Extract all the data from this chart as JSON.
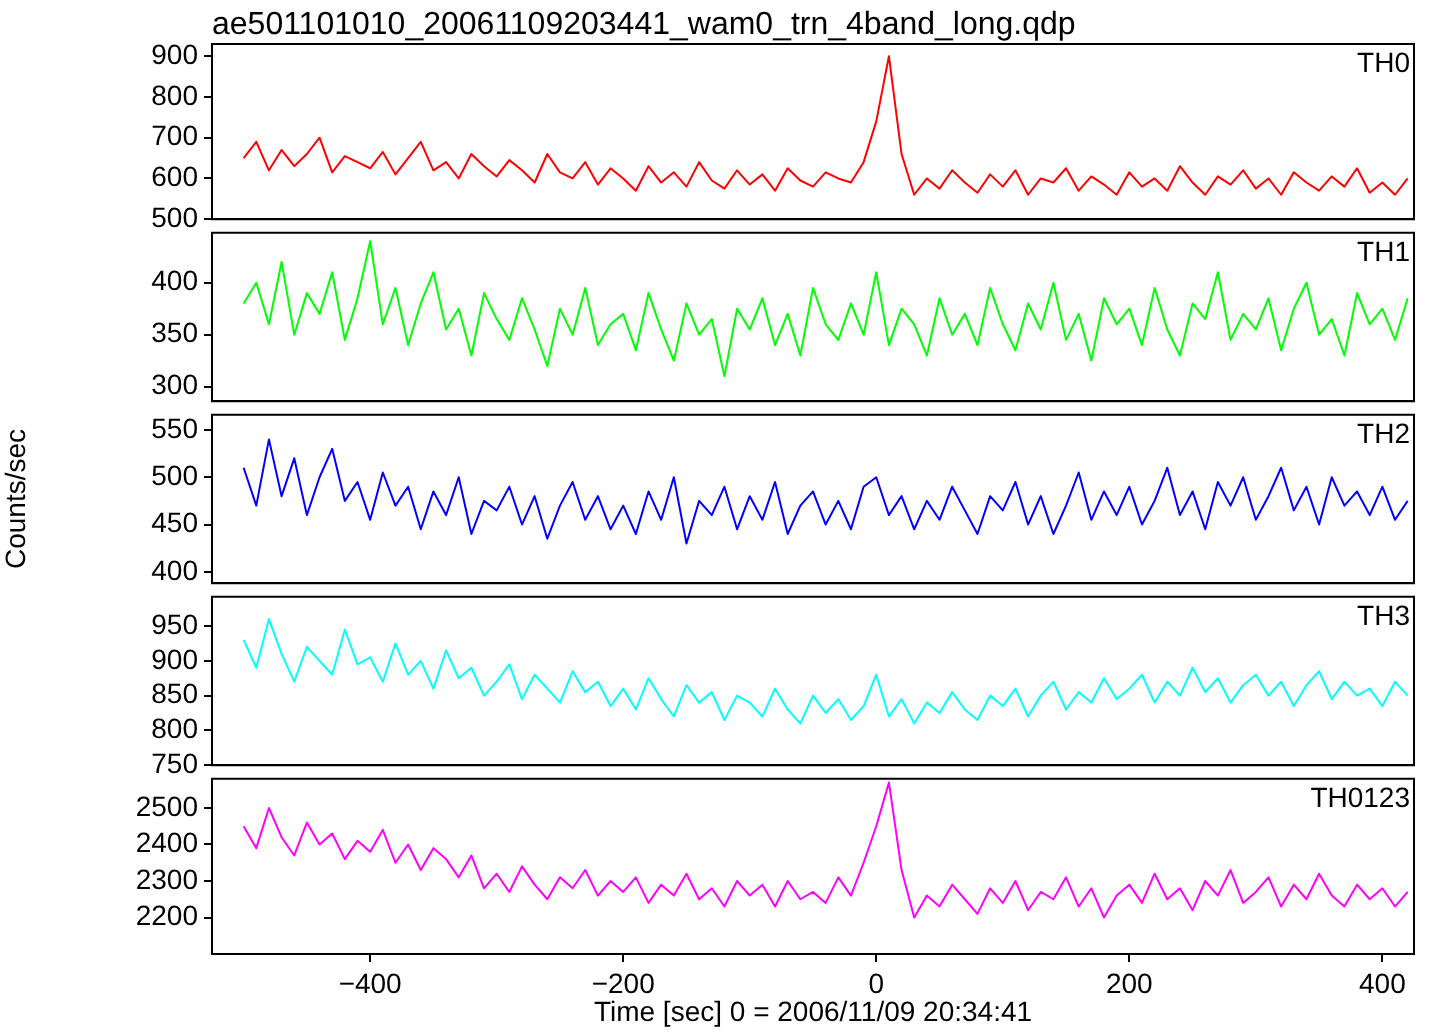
{
  "chart_data": [
    {
      "type": "line",
      "title": "ae501101010_20061109203441_wam0_trn_4band_long.qdp",
      "x": [
        -500,
        -490,
        -480,
        -470,
        -460,
        -450,
        -440,
        -430,
        -420,
        -410,
        -400,
        -390,
        -380,
        -370,
        -360,
        -350,
        -340,
        -330,
        -320,
        -310,
        -300,
        -290,
        -280,
        -270,
        -260,
        -250,
        -240,
        -230,
        -220,
        -210,
        -200,
        -190,
        -180,
        -170,
        -160,
        -150,
        -140,
        -130,
        -120,
        -110,
        -100,
        -90,
        -80,
        -70,
        -60,
        -50,
        -40,
        -30,
        -20,
        -10,
        0,
        10,
        20,
        30,
        40,
        50,
        60,
        70,
        80,
        90,
        100,
        110,
        120,
        130,
        140,
        150,
        160,
        170,
        180,
        190,
        200,
        210,
        220,
        230,
        240,
        250,
        260,
        270,
        280,
        290,
        300,
        310,
        320,
        330,
        340,
        350,
        360,
        370,
        380,
        390,
        400,
        410,
        420
      ],
      "xlim": [
        -525,
        425
      ],
      "xticks": [
        -400,
        -200,
        0,
        200,
        400
      ],
      "ylim": [
        500,
        930
      ],
      "yticks": [
        500,
        600,
        700,
        800,
        900
      ],
      "tick_labels": "y",
      "series": [
        {
          "name": "TH0",
          "color": "#ff0000",
          "values": [
            650,
            690,
            620,
            670,
            630,
            660,
            700,
            615,
            655,
            640,
            625,
            665,
            610,
            650,
            690,
            620,
            640,
            600,
            660,
            630,
            605,
            645,
            620,
            590,
            660,
            615,
            600,
            640,
            585,
            625,
            600,
            570,
            630,
            590,
            615,
            580,
            640,
            595,
            575,
            620,
            585,
            610,
            570,
            625,
            595,
            580,
            615,
            600,
            590,
            640,
            740,
            900,
            660,
            560,
            600,
            575,
            620,
            590,
            565,
            610,
            580,
            620,
            560,
            600,
            590,
            625,
            570,
            605,
            585,
            560,
            615,
            580,
            600,
            570,
            630,
            590,
            560,
            605,
            585,
            620,
            575,
            600,
            560,
            615,
            590,
            570,
            605,
            580,
            625,
            565,
            590,
            560,
            600
          ]
        }
      ]
    },
    {
      "type": "line",
      "x": [
        -500,
        -490,
        -480,
        -470,
        -460,
        -450,
        -440,
        -430,
        -420,
        -410,
        -400,
        -390,
        -380,
        -370,
        -360,
        -350,
        -340,
        -330,
        -320,
        -310,
        -300,
        -290,
        -280,
        -270,
        -260,
        -250,
        -240,
        -230,
        -220,
        -210,
        -200,
        -190,
        -180,
        -170,
        -160,
        -150,
        -140,
        -130,
        -120,
        -110,
        -100,
        -90,
        -80,
        -70,
        -60,
        -50,
        -40,
        -30,
        -20,
        -10,
        0,
        10,
        20,
        30,
        40,
        50,
        60,
        70,
        80,
        90,
        100,
        110,
        120,
        130,
        140,
        150,
        160,
        170,
        180,
        190,
        200,
        210,
        220,
        230,
        240,
        250,
        260,
        270,
        280,
        290,
        300,
        310,
        320,
        330,
        340,
        350,
        360,
        370,
        380,
        390,
        400,
        410,
        420
      ],
      "xlim": [
        -525,
        425
      ],
      "xticks": [
        -400,
        -200,
        0,
        200,
        400
      ],
      "ylim": [
        286,
        448
      ],
      "yticks": [
        300,
        350,
        400
      ],
      "tick_labels": "y",
      "series": [
        {
          "name": "TH1",
          "color": "#00ff00",
          "values": [
            380,
            400,
            360,
            420,
            350,
            390,
            370,
            410,
            345,
            385,
            440,
            360,
            395,
            340,
            380,
            410,
            355,
            375,
            330,
            390,
            365,
            345,
            385,
            355,
            320,
            375,
            350,
            395,
            340,
            360,
            370,
            335,
            390,
            355,
            325,
            380,
            350,
            365,
            310,
            375,
            355,
            385,
            340,
            370,
            330,
            395,
            360,
            345,
            380,
            350,
            410,
            340,
            375,
            360,
            330,
            385,
            350,
            370,
            340,
            395,
            360,
            335,
            380,
            355,
            400,
            345,
            370,
            325,
            385,
            360,
            375,
            340,
            395,
            355,
            330,
            380,
            365,
            410,
            345,
            370,
            355,
            385,
            335,
            375,
            400,
            350,
            365,
            330,
            390,
            360,
            375,
            345,
            385
          ]
        }
      ]
    },
    {
      "type": "line",
      "ylabel": "Counts/sec",
      "x": [
        -500,
        -490,
        -480,
        -470,
        -460,
        -450,
        -440,
        -430,
        -420,
        -410,
        -400,
        -390,
        -380,
        -370,
        -360,
        -350,
        -340,
        -330,
        -320,
        -310,
        -300,
        -290,
        -280,
        -270,
        -260,
        -250,
        -240,
        -230,
        -220,
        -210,
        -200,
        -190,
        -180,
        -170,
        -160,
        -150,
        -140,
        -130,
        -120,
        -110,
        -100,
        -90,
        -80,
        -70,
        -60,
        -50,
        -40,
        -30,
        -20,
        -10,
        0,
        10,
        20,
        30,
        40,
        50,
        60,
        70,
        80,
        90,
        100,
        110,
        120,
        130,
        140,
        150,
        160,
        170,
        180,
        190,
        200,
        210,
        220,
        230,
        240,
        250,
        260,
        270,
        280,
        290,
        300,
        310,
        320,
        330,
        340,
        350,
        360,
        370,
        380,
        390,
        400,
        410,
        420
      ],
      "xlim": [
        -525,
        425
      ],
      "xticks": [
        -400,
        -200,
        0,
        200,
        400
      ],
      "ylim": [
        388,
        566
      ],
      "yticks": [
        400,
        450,
        500,
        550
      ],
      "tick_labels": "y",
      "series": [
        {
          "name": "TH2",
          "color": "#0000ff",
          "values": [
            510,
            470,
            540,
            480,
            520,
            460,
            500,
            530,
            475,
            495,
            455,
            505,
            470,
            490,
            445,
            485,
            460,
            500,
            440,
            475,
            465,
            490,
            450,
            480,
            435,
            470,
            495,
            455,
            480,
            445,
            470,
            440,
            485,
            455,
            500,
            430,
            475,
            460,
            490,
            445,
            480,
            455,
            495,
            440,
            470,
            485,
            450,
            475,
            445,
            490,
            500,
            460,
            480,
            445,
            475,
            455,
            490,
            465,
            440,
            480,
            465,
            495,
            450,
            480,
            440,
            470,
            505,
            455,
            485,
            460,
            490,
            450,
            475,
            510,
            460,
            485,
            445,
            495,
            470,
            500,
            455,
            480,
            510,
            465,
            490,
            450,
            500,
            470,
            485,
            460,
            490,
            455,
            475
          ]
        }
      ]
    },
    {
      "type": "line",
      "x": [
        -500,
        -490,
        -480,
        -470,
        -460,
        -450,
        -440,
        -430,
        -420,
        -410,
        -400,
        -390,
        -380,
        -370,
        -360,
        -350,
        -340,
        -330,
        -320,
        -310,
        -300,
        -290,
        -280,
        -270,
        -260,
        -250,
        -240,
        -230,
        -220,
        -210,
        -200,
        -190,
        -180,
        -170,
        -160,
        -150,
        -140,
        -130,
        -120,
        -110,
        -100,
        -90,
        -80,
        -70,
        -60,
        -50,
        -40,
        -30,
        -20,
        -10,
        0,
        10,
        20,
        30,
        40,
        50,
        60,
        70,
        80,
        90,
        100,
        110,
        120,
        130,
        140,
        150,
        160,
        170,
        180,
        190,
        200,
        210,
        220,
        230,
        240,
        250,
        260,
        270,
        280,
        290,
        300,
        310,
        320,
        330,
        340,
        350,
        360,
        370,
        380,
        390,
        400,
        410,
        420
      ],
      "xlim": [
        -525,
        425
      ],
      "xticks": [
        -400,
        -200,
        0,
        200,
        400
      ],
      "ylim": [
        750,
        992
      ],
      "yticks": [
        750,
        800,
        850,
        900,
        950
      ],
      "tick_labels": "y",
      "series": [
        {
          "name": "TH3",
          "color": "#00ffff",
          "values": [
            930,
            890,
            960,
            910,
            870,
            920,
            900,
            880,
            945,
            895,
            905,
            870,
            925,
            880,
            900,
            860,
            915,
            875,
            890,
            850,
            870,
            895,
            845,
            880,
            860,
            840,
            885,
            855,
            870,
            835,
            860,
            830,
            875,
            845,
            820,
            865,
            840,
            855,
            815,
            850,
            840,
            820,
            860,
            830,
            810,
            850,
            825,
            845,
            815,
            835,
            880,
            820,
            845,
            810,
            840,
            825,
            855,
            830,
            815,
            850,
            835,
            860,
            820,
            850,
            870,
            830,
            855,
            840,
            875,
            845,
            860,
            880,
            840,
            870,
            850,
            890,
            855,
            875,
            840,
            865,
            880,
            850,
            870,
            835,
            865,
            885,
            845,
            870,
            850,
            860,
            835,
            870,
            850
          ]
        }
      ]
    },
    {
      "type": "line",
      "xlabel": "Time [sec] 0 = 2006/11/09 20:34:41",
      "x": [
        -500,
        -490,
        -480,
        -470,
        -460,
        -450,
        -440,
        -430,
        -420,
        -410,
        -400,
        -390,
        -380,
        -370,
        -360,
        -350,
        -340,
        -330,
        -320,
        -310,
        -300,
        -290,
        -280,
        -270,
        -260,
        -250,
        -240,
        -230,
        -220,
        -210,
        -200,
        -190,
        -180,
        -170,
        -160,
        -150,
        -140,
        -130,
        -120,
        -110,
        -100,
        -90,
        -80,
        -70,
        -60,
        -50,
        -40,
        -30,
        -20,
        -10,
        0,
        10,
        20,
        30,
        40,
        50,
        60,
        70,
        80,
        90,
        100,
        110,
        120,
        130,
        140,
        150,
        160,
        170,
        180,
        190,
        200,
        210,
        220,
        230,
        240,
        250,
        260,
        270,
        280,
        290,
        300,
        310,
        320,
        330,
        340,
        350,
        360,
        370,
        380,
        390,
        400,
        410,
        420
      ],
      "xlim": [
        -525,
        425
      ],
      "xticks": [
        -400,
        -200,
        0,
        200,
        400
      ],
      "ylim": [
        2100,
        2580
      ],
      "yticks": [
        2200,
        2300,
        2400,
        2500
      ],
      "series": [
        {
          "name": "TH0123",
          "color": "#ff00ff",
          "values": [
            2450,
            2390,
            2500,
            2420,
            2370,
            2460,
            2400,
            2430,
            2360,
            2410,
            2380,
            2440,
            2350,
            2400,
            2330,
            2390,
            2360,
            2310,
            2370,
            2280,
            2320,
            2270,
            2340,
            2290,
            2250,
            2310,
            2280,
            2330,
            2260,
            2300,
            2270,
            2310,
            2240,
            2290,
            2260,
            2320,
            2250,
            2280,
            2230,
            2300,
            2260,
            2290,
            2230,
            2300,
            2250,
            2270,
            2240,
            2310,
            2260,
            2350,
            2450,
            2570,
            2330,
            2200,
            2260,
            2230,
            2290,
            2250,
            2210,
            2280,
            2240,
            2300,
            2220,
            2270,
            2250,
            2310,
            2230,
            2280,
            2200,
            2260,
            2290,
            2240,
            2320,
            2250,
            2280,
            2220,
            2300,
            2260,
            2330,
            2240,
            2270,
            2310,
            2230,
            2290,
            2250,
            2320,
            2260,
            2230,
            2290,
            2250,
            2280,
            2230,
            2270
          ]
        }
      ]
    }
  ]
}
